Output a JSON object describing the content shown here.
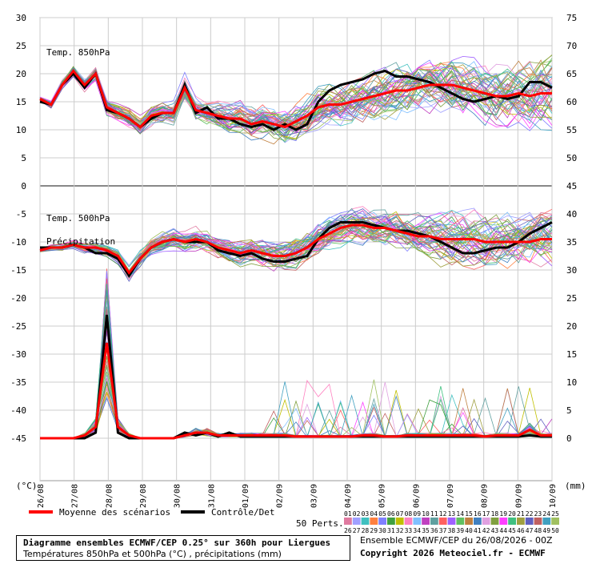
{
  "chart_data": {
    "type": "line",
    "title": "Diagramme ensembles ECMWF/CEP 0.25° sur 360h pour Liergues",
    "subtitle": "Températures 850hPa et 500hPa (°C) , précipitations (mm)",
    "run_info": "Ensemble ECMWF/CEP du 26/08/2026 - 00Z",
    "copyright": "Copyright 2026 Meteociel.fr - ECMWF",
    "x_dates": [
      "26/08",
      "27/08",
      "28/08",
      "29/08",
      "30/08",
      "31/08",
      "01/09",
      "02/09",
      "03/09",
      "04/09",
      "05/09",
      "06/09",
      "07/09",
      "08/09",
      "09/09",
      "10/09"
    ],
    "left_axis": {
      "unit": "(°C)",
      "ticks": [
        "30",
        "25",
        "20",
        "15",
        "10",
        "5",
        "0",
        "-5",
        "-10",
        "-15",
        "-20",
        "-25",
        "-30",
        "-35",
        "-40",
        "-45"
      ],
      "range": [
        -45,
        30
      ]
    },
    "right_axis": {
      "unit": "(mm)",
      "ticks": [
        "75",
        "70",
        "65",
        "60",
        "55",
        "50",
        "45",
        "40",
        "35",
        "30",
        "25",
        "20",
        "15",
        "10",
        "5",
        "0"
      ],
      "range": [
        0,
        75
      ]
    },
    "panels": [
      {
        "label": "Temp. 850hPa"
      },
      {
        "label": "Temp. 500hPa"
      },
      {
        "label": "Précipitation"
      }
    ],
    "legend": {
      "mean_label": "Moyenne des scénarios",
      "mean_color": "#ff0000",
      "control_label": "Contrôle/Det",
      "control_color": "#000000",
      "perts_label": "50 Perts.",
      "perts_row1": [
        "01",
        "02",
        "03",
        "04",
        "05",
        "06",
        "07",
        "08",
        "09",
        "10",
        "11",
        "12",
        "13",
        "14",
        "15",
        "16",
        "17",
        "18",
        "19",
        "20",
        "21",
        "22",
        "23",
        "24",
        "25"
      ],
      "perts_row2": [
        "26",
        "27",
        "28",
        "29",
        "30",
        "31",
        "32",
        "33",
        "34",
        "35",
        "36",
        "37",
        "38",
        "39",
        "40",
        "41",
        "42",
        "43",
        "44",
        "45",
        "46",
        "47",
        "48",
        "49",
        "50"
      ],
      "perts_colors": [
        "#e07aa0",
        "#a0a0ff",
        "#40c0c0",
        "#ff8040",
        "#8080ff",
        "#40a040",
        "#c0c000",
        "#ff80c0",
        "#80c0ff",
        "#c040c0",
        "#60a0a0",
        "#ff6060",
        "#a060ff",
        "#60c060",
        "#c08040",
        "#4080c0",
        "#e0a0e0",
        "#80a040",
        "#ff40ff",
        "#40c080",
        "#a0a040",
        "#6060c0",
        "#c06060",
        "#40a0c0",
        "#a0c060"
      ],
      "series_count": 50
    },
    "series": [
      {
        "name": "Moyenne des scénarios",
        "t850": [
          15.5,
          14.5,
          18,
          20.5,
          18,
          20,
          14,
          13,
          12,
          10.5,
          12.5,
          13,
          13,
          17.5,
          13.5,
          13,
          12.5,
          12,
          12,
          11,
          11.5,
          11,
          10.5,
          11.5,
          12.5,
          14,
          14.5,
          14.5,
          15,
          15.5,
          16,
          16.5,
          17,
          17,
          17.5,
          18,
          18,
          18,
          17.5,
          17,
          16.5,
          16,
          16,
          16.5,
          16,
          16.5,
          16.5
        ],
        "t500": [
          -11.5,
          -11,
          -11,
          -10.5,
          -11,
          -11,
          -11.5,
          -12.5,
          -15.5,
          -13,
          -11,
          -10,
          -9.5,
          -10,
          -9.5,
          -10,
          -11,
          -11.5,
          -12,
          -11.5,
          -12,
          -12.5,
          -12.5,
          -12,
          -11,
          -9.5,
          -8.5,
          -7.5,
          -7,
          -7,
          -7.5,
          -7.5,
          -8,
          -8.5,
          -9,
          -9,
          -9.5,
          -9.5,
          -9.5,
          -9.5,
          -10,
          -10,
          -10,
          -10,
          -10,
          -9.5,
          -9.5
        ],
        "precip": [
          0,
          0,
          0,
          0,
          0.5,
          2,
          17,
          2,
          0.5,
          0,
          0,
          0,
          0,
          0.5,
          1,
          1,
          0.5,
          0.5,
          0.5,
          0.5,
          0.5,
          0.5,
          0.5,
          0.3,
          0.3,
          0.3,
          0.3,
          0.3,
          0.3,
          0.5,
          0.5,
          0.3,
          0.3,
          0.5,
          0.5,
          0.5,
          0.5,
          0.5,
          0.5,
          0.5,
          0.3,
          0.5,
          0.5,
          0.5,
          1.5,
          0.5,
          0.5
        ]
      },
      {
        "name": "Contrôle/Det",
        "t850": [
          15,
          14.5,
          18,
          20,
          17.5,
          20,
          13.5,
          13,
          12,
          10.5,
          12,
          13,
          13,
          18,
          13,
          14,
          12,
          12,
          11,
          10.5,
          11,
          10,
          11,
          10,
          11,
          15,
          17,
          18,
          18.5,
          19,
          20,
          20.5,
          19.5,
          19.5,
          19,
          18.5,
          17.5,
          16.5,
          15.5,
          15,
          15.5,
          16,
          15.5,
          16,
          18.5,
          18.5,
          17.5
        ],
        "t500": [
          -11,
          -11,
          -11,
          -10.5,
          -11,
          -12,
          -12,
          -13,
          -16,
          -13,
          -11,
          -10,
          -9.5,
          -10,
          -10,
          -10,
          -11.5,
          -12,
          -12.5,
          -12,
          -13,
          -13.5,
          -13.5,
          -13,
          -12.5,
          -9.5,
          -7.5,
          -6.5,
          -6.5,
          -6.5,
          -7,
          -7.5,
          -8,
          -8,
          -8.5,
          -9,
          -10,
          -11,
          -12,
          -12,
          -11.5,
          -11,
          -11,
          -10,
          -8.5,
          -7.5,
          -6.5
        ],
        "precip": [
          0,
          0,
          0,
          0,
          0,
          1,
          22,
          1,
          0,
          0,
          0,
          0,
          0,
          1,
          0.5,
          1,
          0.3,
          1,
          0.3,
          0.3,
          0.3,
          0.3,
          0.3,
          0.3,
          0.3,
          0.3,
          0.3,
          0.3,
          0.3,
          0.3,
          0.3,
          0.3,
          0.3,
          0.3,
          0.3,
          0.3,
          0.3,
          0.3,
          0.3,
          0.3,
          0.3,
          0.3,
          0.3,
          0.3,
          0.5,
          0.3,
          0.3
        ]
      }
    ]
  }
}
